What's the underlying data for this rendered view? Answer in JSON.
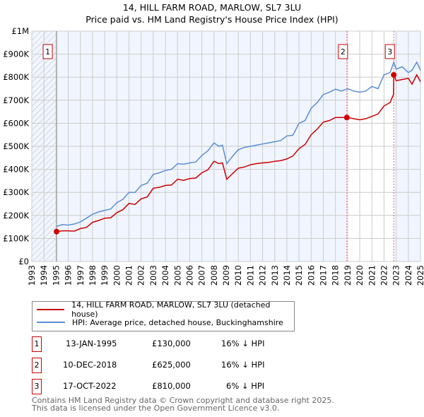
{
  "chart_data": {
    "type": "line",
    "title": [
      "14, HILL FARM ROAD, MARLOW, SL7 3LU",
      "Price paid vs. HM Land Registry's House Price Index (HPI)"
    ],
    "xlim": [
      1993,
      2025
    ],
    "ylim": [
      0,
      1000000
    ],
    "y_ticks": [
      {
        "v": 0,
        "label": "£0"
      },
      {
        "v": 100000,
        "label": "£100K"
      },
      {
        "v": 200000,
        "label": "£200K"
      },
      {
        "v": 300000,
        "label": "£300K"
      },
      {
        "v": 400000,
        "label": "£400K"
      },
      {
        "v": 500000,
        "label": "£500K"
      },
      {
        "v": 600000,
        "label": "£600K"
      },
      {
        "v": 700000,
        "label": "£700K"
      },
      {
        "v": 800000,
        "label": "£800K"
      },
      {
        "v": 900000,
        "label": "£900K"
      },
      {
        "v": 1000000,
        "label": "£1M"
      }
    ],
    "x_ticks": [
      "1993",
      "1994",
      "1995",
      "1996",
      "1997",
      "1998",
      "1999",
      "2000",
      "2001",
      "2002",
      "2003",
      "2004",
      "2005",
      "2006",
      "2007",
      "2008",
      "2009",
      "2010",
      "2011",
      "2012",
      "2013",
      "2014",
      "2015",
      "2016",
      "2017",
      "2018",
      "2019",
      "2020",
      "2021",
      "2022",
      "2023",
      "2024",
      "2025"
    ],
    "series": [
      {
        "name": "14, HILL FARM ROAD, MARLOW, SL7 3LU (detached house)",
        "color": "#cc0000",
        "x": [
          1995.04,
          1995.5,
          1996,
          1996.5,
          1997,
          1997.5,
          1998,
          1998.5,
          1999,
          1999.5,
          2000,
          2000.5,
          2001,
          2001.5,
          2002,
          2002.5,
          2003,
          2003.5,
          2004,
          2004.5,
          2005,
          2005.5,
          2006,
          2006.5,
          2007,
          2007.5,
          2008,
          2008.4,
          2008.7,
          2009.05,
          2009.5,
          2010,
          2010.5,
          2011,
          2011.5,
          2012,
          2012.5,
          2013,
          2013.5,
          2014,
          2014.5,
          2015,
          2015.5,
          2016,
          2016.5,
          2017,
          2017.5,
          2018,
          2018.94,
          2019.5,
          2020,
          2020.5,
          2021,
          2021.5,
          2022,
          2022.5,
          2022.78,
          2022.8,
          2023,
          2023.5,
          2024,
          2024.3,
          2024.7,
          2025
        ],
        "y": [
          130000,
          133000,
          133000,
          132000,
          143000,
          148000,
          170000,
          178000,
          188000,
          190000,
          212000,
          225000,
          252000,
          248000,
          272000,
          280000,
          318000,
          322000,
          330000,
          332000,
          357000,
          352000,
          360000,
          362000,
          385000,
          398000,
          435000,
          425000,
          428000,
          357000,
          380000,
          405000,
          410000,
          420000,
          425000,
          428000,
          430000,
          435000,
          438000,
          445000,
          458000,
          490000,
          508000,
          550000,
          575000,
          605000,
          612000,
          625000,
          625000,
          620000,
          615000,
          620000,
          630000,
          640000,
          675000,
          690000,
          725000,
          810000,
          785000,
          790000,
          795000,
          770000,
          810000,
          780000
        ]
      },
      {
        "name": "HPI: Average price, detached house, Buckinghamshire",
        "color": "#5b8fd4",
        "x": [
          1995.04,
          1995.5,
          1996,
          1996.5,
          1997,
          1997.5,
          1998,
          1998.5,
          1999,
          1999.5,
          2000,
          2000.5,
          2001,
          2001.5,
          2002,
          2002.5,
          2003,
          2003.5,
          2004,
          2004.5,
          2005,
          2005.5,
          2006,
          2006.5,
          2007,
          2007.5,
          2008,
          2008.4,
          2008.7,
          2009.05,
          2009.5,
          2010,
          2010.5,
          2011,
          2011.5,
          2012,
          2012.5,
          2013,
          2013.5,
          2014,
          2014.5,
          2015,
          2015.5,
          2016,
          2016.5,
          2017,
          2017.5,
          2018,
          2018.5,
          2019,
          2019.5,
          2020,
          2020.5,
          2021,
          2021.5,
          2022,
          2022.5,
          2022.8,
          2023,
          2023.5,
          2024,
          2024.3,
          2024.7,
          2025
        ],
        "y": [
          152000,
          160000,
          158000,
          163000,
          172000,
          188000,
          205000,
          215000,
          222000,
          228000,
          255000,
          270000,
          300000,
          300000,
          330000,
          340000,
          378000,
          385000,
          395000,
          400000,
          425000,
          422000,
          428000,
          432000,
          460000,
          480000,
          515000,
          500000,
          505000,
          425000,
          455000,
          485000,
          495000,
          500000,
          505000,
          510000,
          515000,
          520000,
          525000,
          545000,
          548000,
          600000,
          612000,
          665000,
          690000,
          725000,
          735000,
          748000,
          740000,
          750000,
          740000,
          735000,
          740000,
          760000,
          750000,
          810000,
          820000,
          865000,
          835000,
          845000,
          820000,
          830000,
          865000,
          830000
        ]
      }
    ],
    "sales": [
      {
        "n": "1",
        "x": 1995.04,
        "price": 130000,
        "date": "13-JAN-1995",
        "price_label": "£130,000",
        "hpi": "16% ↓ HPI"
      },
      {
        "n": "2",
        "x": 2018.94,
        "price": 625000,
        "date": "10-DEC-2018",
        "price_label": "£625,000",
        "hpi": "16% ↓ HPI"
      },
      {
        "n": "3",
        "x": 2022.8,
        "price": 810000,
        "date": "17-OCT-2022",
        "price_label": "£810,000",
        "hpi": "6% ↓ HPI"
      }
    ],
    "legend_position": "bottom"
  },
  "footer": [
    "Contains HM Land Registry data © Crown copyright and database right 2025.",
    "This data is licensed under the Open Government Licence v3.0."
  ]
}
